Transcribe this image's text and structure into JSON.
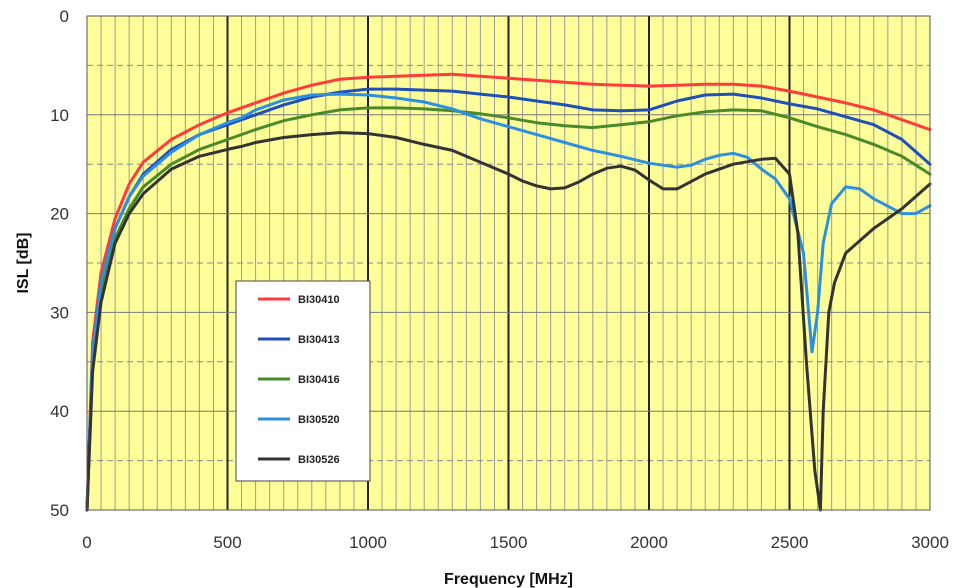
{
  "chart_data": {
    "type": "line",
    "xlabel": "Frequency [MHz]",
    "ylabel": "ISL [dB]",
    "xlim": [
      0,
      3000
    ],
    "ylim": [
      0,
      50
    ],
    "y_inverted": true,
    "x_ticks": [
      "0",
      "500",
      "1000",
      "1500",
      "2000",
      "2500",
      "3000"
    ],
    "y_ticks": [
      "0",
      "10",
      "20",
      "30",
      "40",
      "50"
    ],
    "grid": true,
    "plot_background": "#ffff99",
    "legend_position": "center-left",
    "series": [
      {
        "name": "BI30410",
        "color": "#ff3b3b",
        "x": [
          0,
          20,
          50,
          100,
          150,
          200,
          300,
          400,
          500,
          600,
          700,
          800,
          900,
          1000,
          1100,
          1200,
          1300,
          1400,
          1500,
          1600,
          1700,
          1800,
          1900,
          2000,
          2100,
          2200,
          2300,
          2400,
          2500,
          2600,
          2700,
          2800,
          2900,
          3000
        ],
        "y": [
          50,
          33,
          26,
          20.5,
          17,
          14.8,
          12.5,
          11,
          9.8,
          8.8,
          7.8,
          7,
          6.4,
          6.2,
          6.1,
          6,
          5.9,
          6.1,
          6.3,
          6.5,
          6.7,
          6.9,
          7,
          7.1,
          7,
          6.9,
          6.9,
          7.1,
          7.6,
          8.2,
          8.8,
          9.5,
          10.5,
          11.5
        ]
      },
      {
        "name": "BI30413",
        "color": "#1f4fb8",
        "x": [
          0,
          20,
          50,
          100,
          150,
          200,
          300,
          400,
          500,
          600,
          700,
          800,
          900,
          1000,
          1100,
          1200,
          1300,
          1400,
          1500,
          1600,
          1700,
          1800,
          1900,
          2000,
          2100,
          2200,
          2300,
          2400,
          2500,
          2600,
          2700,
          2800,
          2900,
          3000
        ],
        "y": [
          50,
          34,
          27,
          21.5,
          18.3,
          16,
          13.5,
          12,
          11,
          10,
          9,
          8.2,
          7.7,
          7.4,
          7.4,
          7.5,
          7.6,
          7.9,
          8.2,
          8.6,
          9,
          9.5,
          9.6,
          9.5,
          8.6,
          8,
          7.9,
          8.3,
          8.9,
          9.4,
          10.2,
          11,
          12.5,
          15
        ]
      },
      {
        "name": "BI30416",
        "color": "#4a8a2a",
        "x": [
          0,
          20,
          50,
          100,
          150,
          200,
          300,
          400,
          500,
          600,
          700,
          800,
          900,
          1000,
          1100,
          1200,
          1300,
          1400,
          1500,
          1600,
          1700,
          1800,
          1900,
          2000,
          2100,
          2200,
          2300,
          2400,
          2500,
          2600,
          2700,
          2800,
          2900,
          3000
        ],
        "y": [
          50,
          35,
          28,
          22.5,
          19.5,
          17.3,
          15,
          13.5,
          12.5,
          11.5,
          10.6,
          10,
          9.5,
          9.3,
          9.3,
          9.4,
          9.6,
          9.9,
          10.3,
          10.8,
          11.1,
          11.3,
          11,
          10.7,
          10.1,
          9.7,
          9.5,
          9.6,
          10.3,
          11.2,
          12,
          13,
          14.2,
          16
        ]
      },
      {
        "name": "BI30520",
        "color": "#2c8fe0",
        "x": [
          0,
          20,
          50,
          100,
          150,
          200,
          300,
          400,
          500,
          550,
          600,
          700,
          800,
          900,
          1000,
          1100,
          1200,
          1300,
          1400,
          1500,
          1600,
          1700,
          1800,
          1900,
          2000,
          2100,
          2150,
          2200,
          2250,
          2300,
          2350,
          2400,
          2450,
          2500,
          2550,
          2580,
          2600,
          2620,
          2650,
          2700,
          2750,
          2800,
          2900,
          2950,
          3000
        ],
        "y": [
          50,
          34,
          27,
          21.5,
          18.3,
          16.2,
          13.8,
          12,
          10.8,
          10.3,
          9.5,
          8.5,
          8,
          7.9,
          8,
          8.3,
          8.7,
          9.4,
          10.4,
          11.2,
          12,
          12.8,
          13.6,
          14.2,
          14.9,
          15.3,
          15.1,
          14.5,
          14.1,
          13.9,
          14.3,
          15.5,
          16.5,
          18.5,
          24,
          34,
          30,
          23,
          19,
          17.3,
          17.5,
          18.5,
          20,
          20,
          19.2
        ]
      },
      {
        "name": "BI30526",
        "color": "#333333",
        "x": [
          0,
          20,
          50,
          100,
          150,
          200,
          300,
          400,
          500,
          550,
          600,
          700,
          800,
          900,
          1000,
          1100,
          1200,
          1300,
          1400,
          1500,
          1550,
          1600,
          1650,
          1700,
          1750,
          1800,
          1850,
          1900,
          1950,
          2000,
          2050,
          2100,
          2200,
          2300,
          2400,
          2450,
          2500,
          2530,
          2560,
          2590,
          2610,
          2620,
          2640,
          2660,
          2700,
          2800,
          2900,
          3000
        ],
        "y": [
          50,
          36,
          29,
          23,
          20,
          18,
          15.5,
          14.2,
          13.5,
          13.2,
          12.8,
          12.3,
          12,
          11.8,
          11.9,
          12.3,
          13,
          13.6,
          14.8,
          16,
          16.7,
          17.2,
          17.5,
          17.4,
          16.8,
          16,
          15.4,
          15.2,
          15.6,
          16.6,
          17.5,
          17.5,
          16,
          15,
          14.5,
          14.4,
          16,
          22,
          35,
          46,
          50,
          40,
          30,
          27,
          24,
          21.5,
          19.5,
          17
        ]
      }
    ]
  }
}
